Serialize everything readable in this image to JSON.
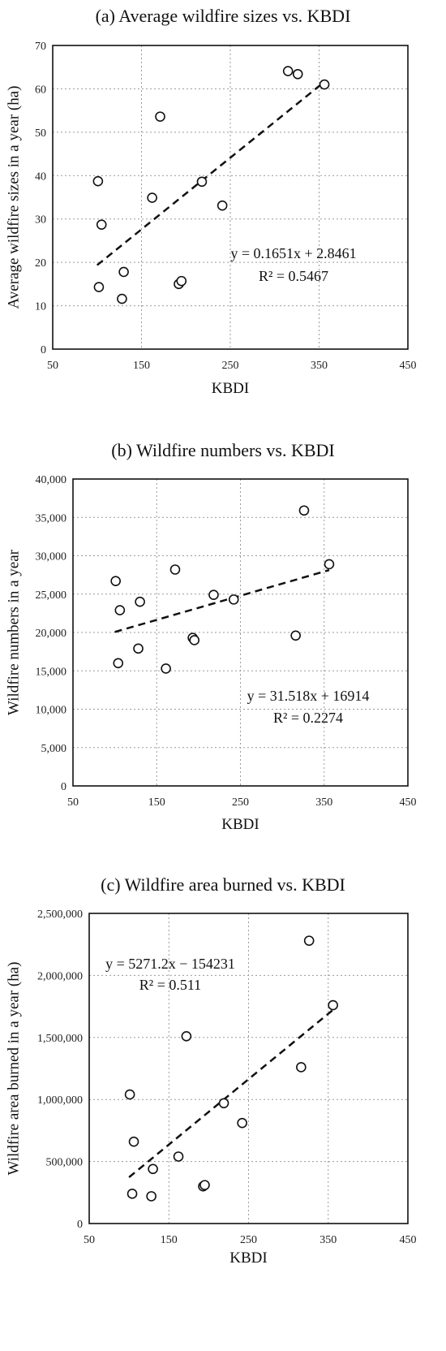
{
  "chart_data": [
    {
      "type": "scatter",
      "title": "(a) Average wildfire sizes vs. KBDI",
      "xlabel": "KBDI",
      "ylabel": "Average wildfire sizes in a year (ha)",
      "xlim": [
        50,
        450
      ],
      "ylim": [
        0,
        70
      ],
      "xticks": [
        50,
        150,
        250,
        350,
        450
      ],
      "yticks": [
        0,
        10,
        20,
        30,
        40,
        50,
        60,
        70
      ],
      "xtick_labels": [
        "50",
        "150",
        "250",
        "350",
        "450"
      ],
      "ytick_labels": [
        "0",
        "10",
        "20",
        "30",
        "40",
        "50",
        "60",
        "70"
      ],
      "grid": true,
      "points": [
        {
          "x": 101,
          "y": 38.7
        },
        {
          "x": 102,
          "y": 14.3
        },
        {
          "x": 105,
          "y": 28.7
        },
        {
          "x": 128,
          "y": 11.6
        },
        {
          "x": 130,
          "y": 17.8
        },
        {
          "x": 162,
          "y": 34.9
        },
        {
          "x": 171,
          "y": 53.6
        },
        {
          "x": 192,
          "y": 15.0
        },
        {
          "x": 195,
          "y": 15.7
        },
        {
          "x": 218,
          "y": 38.6
        },
        {
          "x": 241,
          "y": 33.1
        },
        {
          "x": 315,
          "y": 64.1
        },
        {
          "x": 326,
          "y": 63.4
        },
        {
          "x": 356,
          "y": 61.0
        }
      ],
      "trendline": {
        "slope": 0.1651,
        "intercept": 2.8461,
        "x_range": [
          100,
          356
        ],
        "style": "dashed"
      },
      "annotations": [
        "y = 0.1651x + 2.8461",
        "R² = 0.5467"
      ]
    },
    {
      "type": "scatter",
      "title": "(b) Wildfire numbers vs. KBDI",
      "xlabel": "KBDI",
      "ylabel": "Wildfire numbers in a year",
      "xlim": [
        50,
        450
      ],
      "ylim": [
        0,
        40000
      ],
      "xticks": [
        50,
        150,
        250,
        350,
        450
      ],
      "yticks": [
        0,
        5000,
        10000,
        15000,
        20000,
        25000,
        30000,
        35000,
        40000
      ],
      "xtick_labels": [
        "50",
        "150",
        "250",
        "350",
        "450"
      ],
      "ytick_labels": [
        "0",
        "5,000",
        "10,000",
        "15,000",
        "20,000",
        "25,000",
        "30,000",
        "35,000",
        "40,000"
      ],
      "grid": true,
      "points": [
        {
          "x": 101,
          "y": 26700
        },
        {
          "x": 104,
          "y": 16000
        },
        {
          "x": 106,
          "y": 22900
        },
        {
          "x": 128,
          "y": 17900
        },
        {
          "x": 130,
          "y": 24000
        },
        {
          "x": 161,
          "y": 15300
        },
        {
          "x": 172,
          "y": 28200
        },
        {
          "x": 193,
          "y": 19300
        },
        {
          "x": 195,
          "y": 19000
        },
        {
          "x": 218,
          "y": 24900
        },
        {
          "x": 242,
          "y": 24300
        },
        {
          "x": 316,
          "y": 19600
        },
        {
          "x": 326,
          "y": 35900
        },
        {
          "x": 356,
          "y": 28900
        }
      ],
      "trendline": {
        "slope": 31.518,
        "intercept": 16914,
        "x_range": [
          100,
          356
        ],
        "style": "dashed"
      },
      "annotations": [
        "y = 31.518x + 16914",
        "R² = 0.2274"
      ]
    },
    {
      "type": "scatter",
      "title": "(c) Wildfire area burned vs. KBDI",
      "xlabel": "KBDI",
      "ylabel": "Wildfire area burned in a year (ha)",
      "xlim": [
        50,
        450
      ],
      "ylim": [
        0,
        2500000
      ],
      "xticks": [
        50,
        150,
        250,
        350,
        450
      ],
      "yticks": [
        0,
        500000,
        1000000,
        1500000,
        2000000,
        2500000
      ],
      "xtick_labels": [
        "50",
        "150",
        "250",
        "350",
        "450"
      ],
      "ytick_labels": [
        "0",
        "500,000",
        "1,000,000",
        "1,500,000",
        "2,000,000",
        "2,500,000"
      ],
      "grid": true,
      "points": [
        {
          "x": 101,
          "y": 1040000
        },
        {
          "x": 104,
          "y": 240000
        },
        {
          "x": 106,
          "y": 660000
        },
        {
          "x": 128,
          "y": 220000
        },
        {
          "x": 130,
          "y": 440000
        },
        {
          "x": 162,
          "y": 540000
        },
        {
          "x": 172,
          "y": 1510000
        },
        {
          "x": 193,
          "y": 300000
        },
        {
          "x": 195,
          "y": 310000
        },
        {
          "x": 219,
          "y": 970000
        },
        {
          "x": 242,
          "y": 810000
        },
        {
          "x": 316,
          "y": 1260000
        },
        {
          "x": 326,
          "y": 2280000
        },
        {
          "x": 356,
          "y": 1760000
        }
      ],
      "trendline": {
        "slope": 5271.2,
        "intercept": -154231,
        "x_range": [
          100,
          356
        ],
        "style": "dashed"
      },
      "annotations": [
        "y = 5271.2x − 154231",
        "R² = 0.511"
      ]
    }
  ]
}
